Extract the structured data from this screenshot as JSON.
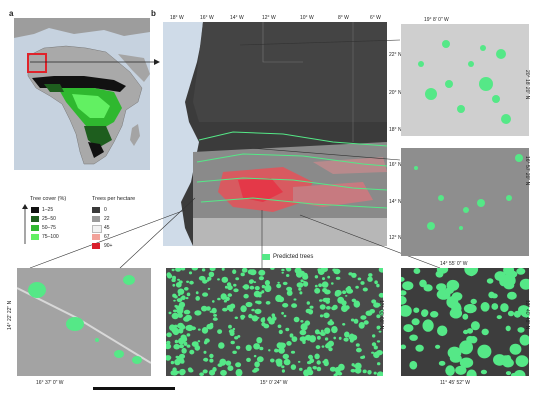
{
  "panels": {
    "a_label": "a",
    "b_label": "b"
  },
  "top_axis": [
    "18° W",
    "16° W",
    "14° W",
    "12° W",
    "10° W",
    "8° W",
    "6° W"
  ],
  "right_axis": [
    "22° N",
    "20° N",
    "18° N",
    "16° N",
    "14° N",
    "12° N"
  ],
  "tree_cover_legend": {
    "title": "Tree cover (%)",
    "items": [
      {
        "label": "1–25",
        "color": "#111111"
      },
      {
        "label": "25–50",
        "color": "#1e5e1e"
      },
      {
        "label": "50–75",
        "color": "#2fb82f"
      },
      {
        "label": "75–100",
        "color": "#62f062"
      }
    ]
  },
  "density_legend": {
    "title": "Trees per hectare",
    "items": [
      {
        "label": "0",
        "color": "#3a3a3a"
      },
      {
        "label": "22",
        "color": "#9a9a9a"
      },
      {
        "label": "45",
        "color": "#f2f2f2"
      },
      {
        "label": "67",
        "color": "#f2a29a"
      },
      {
        "label": "90+",
        "color": "#d81f2c"
      }
    ]
  },
  "predicted_legend": {
    "label": "Predicted trees",
    "color": "#55e887"
  },
  "coords": {
    "top_right_x": "19° 8' 0\" W",
    "top_right_y": "20° 18' 20\" N",
    "mid_right_x": "14° 55' 0\" W",
    "mid_right_y": "16° 57' 20\" N",
    "bottom_left_x": "16° 37' 0\" W",
    "bottom_left_y": "14° 22' 22\" N",
    "bottom_mid_x": "15° 0' 24\" W",
    "bottom_mid_y": "13° 00' 00\" N",
    "bottom_right_x": "11° 45' 52\" W",
    "bottom_right_y": "12° 40' 48\" N"
  }
}
